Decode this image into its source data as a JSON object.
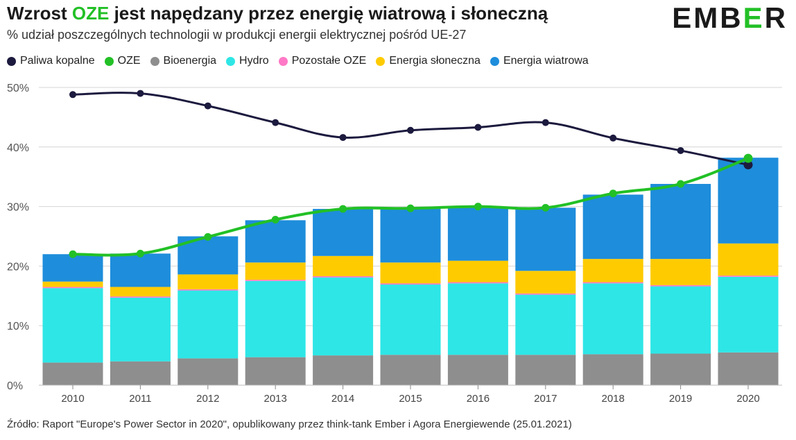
{
  "header": {
    "title_prefix": "Wzrost ",
    "title_highlight": "OZE",
    "title_suffix": " jest napędzany przez energię wiatrową i słoneczną",
    "subtitle": "% udział poszczególnych technologii w produkcji energii elektrycznej pośród UE-27",
    "logo_left": "EMB",
    "logo_mid": "E",
    "logo_right": "R"
  },
  "legend": [
    {
      "label": "Paliwa kopalne",
      "color": "#1c1a3e"
    },
    {
      "label": "OZE",
      "color": "#22c026"
    },
    {
      "label": "Bioenergia",
      "color": "#8e8e8e"
    },
    {
      "label": "Hydro",
      "color": "#2ee6e6"
    },
    {
      "label": "Pozostałe OZE",
      "color": "#ff79c6"
    },
    {
      "label": "Energia słoneczna",
      "color": "#fecb00"
    },
    {
      "label": "Energia wiatrowa",
      "color": "#1e8ddb"
    }
  ],
  "chart_data": {
    "type": "bar",
    "stacked": true,
    "categories": [
      "2010",
      "2011",
      "2012",
      "2013",
      "2014",
      "2015",
      "2016",
      "2017",
      "2018",
      "2019",
      "2020"
    ],
    "series": [
      {
        "name": "Bioenergia",
        "color": "#8e8e8e",
        "values": [
          3.8,
          4.0,
          4.5,
          4.7,
          5.0,
          5.1,
          5.1,
          5.1,
          5.2,
          5.3,
          5.5
        ]
      },
      {
        "name": "Hydro",
        "color": "#2ee6e6",
        "values": [
          12.5,
          10.7,
          11.4,
          12.8,
          13.1,
          11.8,
          12.0,
          10.1,
          11.9,
          11.3,
          12.7
        ]
      },
      {
        "name": "Pozostałe OZE",
        "color": "#ff79c6",
        "values": [
          0.2,
          0.2,
          0.2,
          0.2,
          0.2,
          0.2,
          0.2,
          0.2,
          0.2,
          0.2,
          0.2
        ]
      },
      {
        "name": "Energia słoneczna",
        "color": "#fecb00",
        "values": [
          0.9,
          1.6,
          2.5,
          2.9,
          3.4,
          3.5,
          3.6,
          3.8,
          3.9,
          4.4,
          5.4
        ]
      },
      {
        "name": "Energia wiatrowa",
        "color": "#1e8ddb",
        "values": [
          4.6,
          5.6,
          6.4,
          7.1,
          7.9,
          9.0,
          8.9,
          10.6,
          10.8,
          12.6,
          14.4
        ]
      }
    ],
    "lines": [
      {
        "name": "Paliwa kopalne",
        "color": "#1c1a3e",
        "values": [
          48.8,
          49.0,
          46.9,
          44.1,
          41.6,
          42.8,
          43.3,
          44.1,
          41.5,
          39.4,
          37.0
        ]
      },
      {
        "name": "OZE",
        "color": "#22c026",
        "values": [
          22.0,
          22.1,
          24.9,
          27.8,
          29.6,
          29.7,
          30.0,
          29.8,
          32.2,
          33.8,
          38.1
        ]
      }
    ],
    "title": "Wzrost OZE jest napędzany przez energię wiatrową i słoneczną",
    "xlabel": "",
    "ylabel": "",
    "ylim": [
      0,
      50
    ],
    "yticks": [
      0,
      10,
      20,
      30,
      40,
      50
    ],
    "ytick_labels": [
      "0%",
      "10%",
      "20%",
      "30%",
      "40%",
      "50%"
    ],
    "grid": true
  },
  "footer": {
    "source": "Źródło: Raport \"Europe's Power Sector in 2020\", opublikowany przez think-tank Ember i Agora Energiewende (25.01.2021)"
  }
}
